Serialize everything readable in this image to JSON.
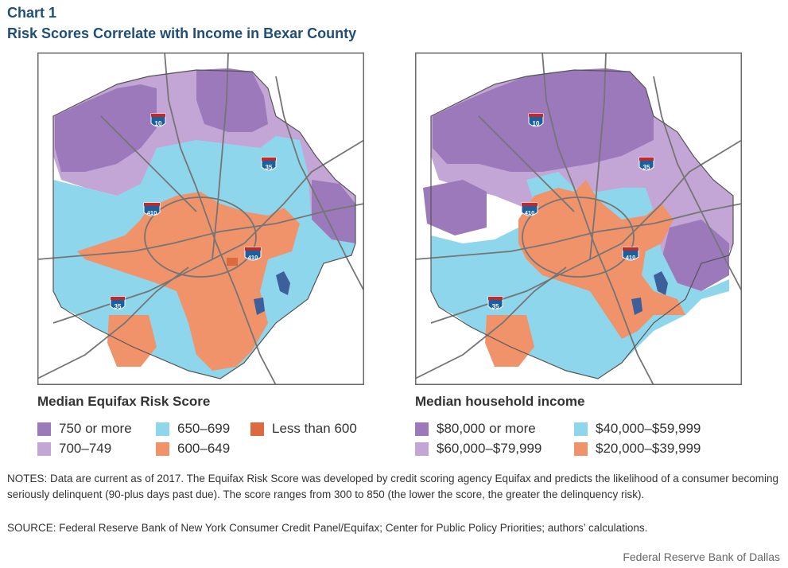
{
  "header": {
    "chart_label": "Chart 1",
    "title": "Risk Scores Correlate with Income in Bexar County"
  },
  "colors": {
    "dark_purple": "#9b79bb",
    "light_purple": "#c4a6d6",
    "light_blue": "#8ed6ec",
    "orange": "#f0936b",
    "dark_orange": "#dc6a3e",
    "water": "#3d5f9a",
    "road": "#757575",
    "border": "#6a6a6a"
  },
  "interstates": [
    "10",
    "35",
    "410",
    "410",
    "35"
  ],
  "left_map": {
    "legend_title": "Median Equifax Risk Score",
    "legend": [
      {
        "label": "750 or more",
        "color": "#9b79bb"
      },
      {
        "label": "700–749",
        "color": "#c4a6d6"
      },
      {
        "label": "650–699",
        "color": "#8ed6ec"
      },
      {
        "label": "600–649",
        "color": "#f0936b"
      },
      {
        "label": "Less than 600",
        "color": "#dc6a3e"
      }
    ]
  },
  "right_map": {
    "legend_title": "Median household income",
    "legend": [
      {
        "label": "$80,000 or more",
        "color": "#9b79bb"
      },
      {
        "label": "$60,000–$79,999",
        "color": "#c4a6d6"
      },
      {
        "label": "$40,000–$59,999",
        "color": "#8ed6ec"
      },
      {
        "label": "$20,000–$39,999",
        "color": "#f0936b"
      }
    ]
  },
  "notes": "NOTES: Data are current as of 2017. The Equifax Risk Score was developed by credit scoring agency Equifax and predicts the likelihood of a consumer becoming seriously delinquent (90-plus days past due). The score ranges from 300 to 850 (the lower the score, the greater the delinquency risk).",
  "source": "SOURCE: Federal Reserve Bank of New York Consumer Credit Panel/Equifax; Center for Public Policy Priorities; authors’ calculations.",
  "credit": "Federal Reserve Bank of Dallas"
}
